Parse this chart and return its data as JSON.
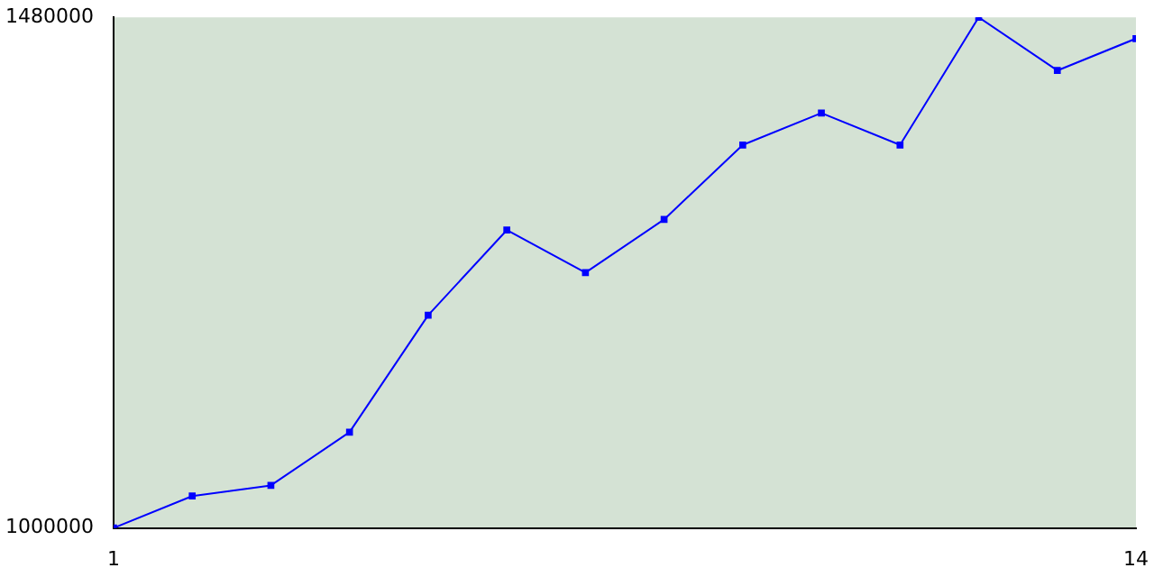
{
  "chart_data": {
    "type": "line",
    "x": [
      1,
      2,
      3,
      4,
      5,
      6,
      7,
      8,
      9,
      10,
      11,
      12,
      13,
      14
    ],
    "values": [
      1000000,
      1030000,
      1040000,
      1090000,
      1200000,
      1280000,
      1240000,
      1290000,
      1360000,
      1390000,
      1360000,
      1480000,
      1430000,
      1460000
    ],
    "color": "#0000ff",
    "xlim": [
      1,
      14
    ],
    "xticks": [
      1,
      14
    ],
    "ylim": [
      1000000,
      1480000
    ],
    "yticks": [
      1000000,
      1480000
    ],
    "marker": "square",
    "grid": false,
    "legend": false
  }
}
